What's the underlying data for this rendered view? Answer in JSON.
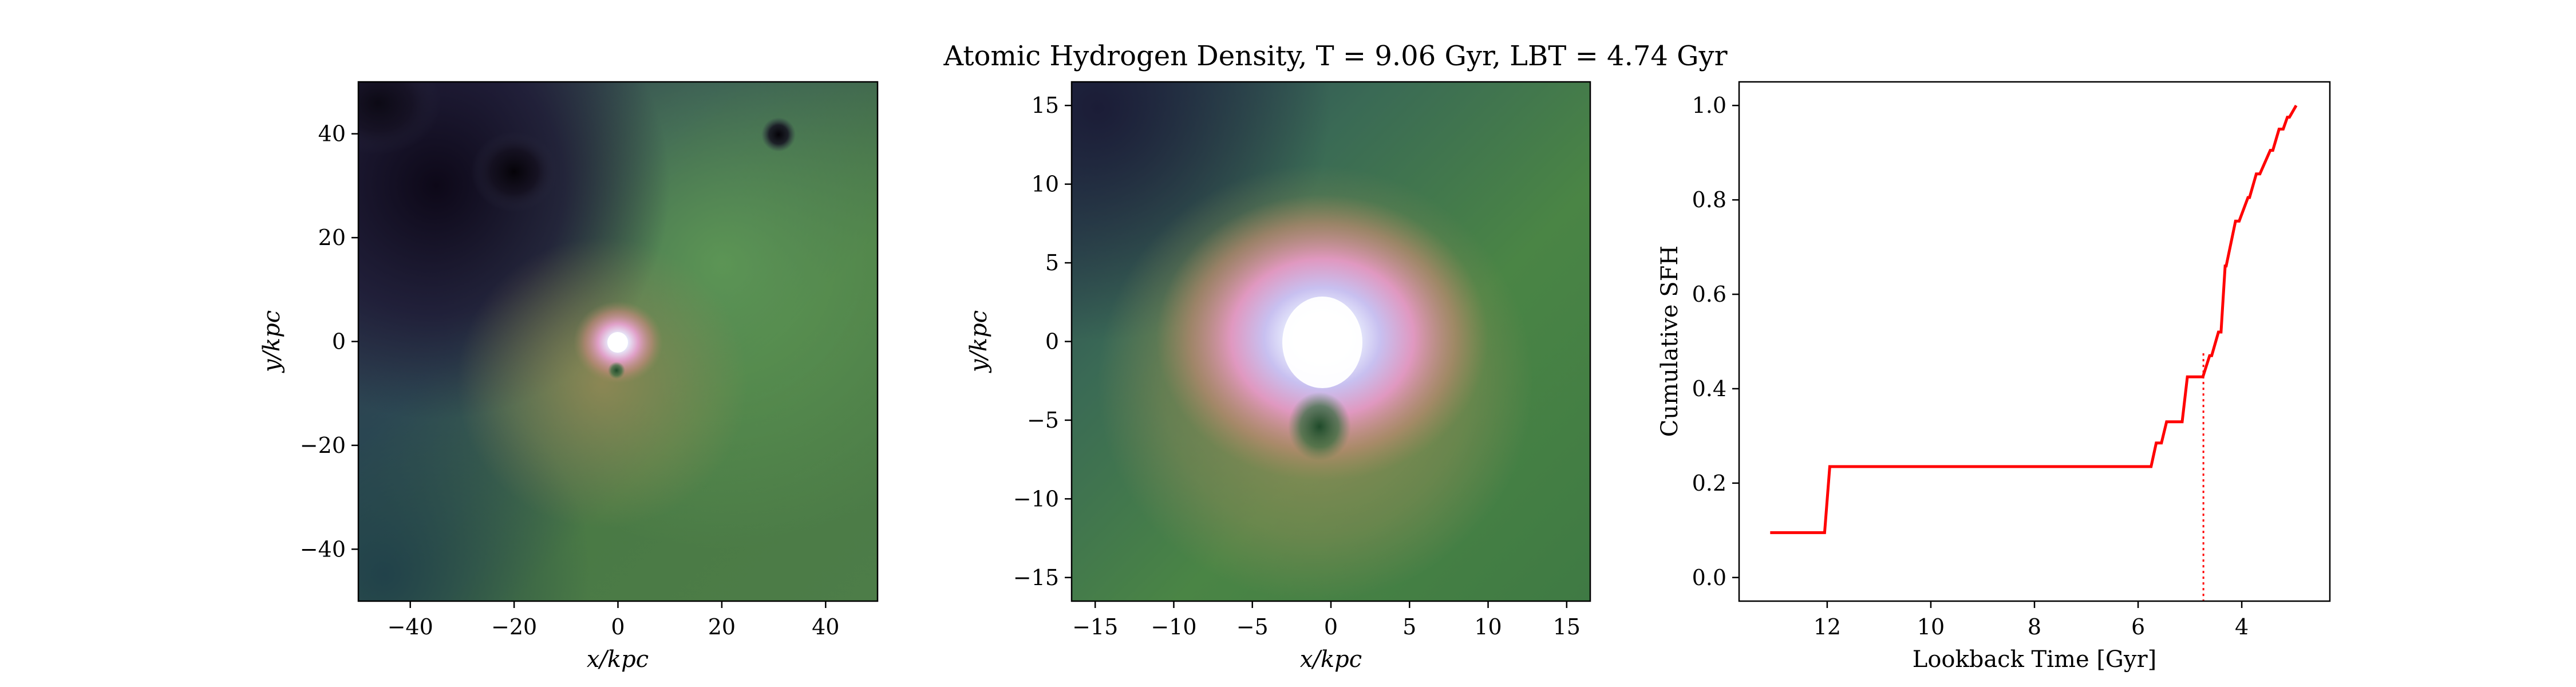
{
  "figure": {
    "title": "Atomic Hydrogen Density, T = 9.06 Gyr, LBT = 4.74 Gyr"
  },
  "chart_data": [
    {
      "type": "heatmap",
      "xlabel": "x/kpc",
      "ylabel": "y/kpc",
      "xlim": [
        -50,
        50
      ],
      "ylim": [
        -50,
        50
      ],
      "x_ticks": [
        -40,
        -20,
        0,
        20,
        40
      ],
      "y_ticks": [
        -40,
        -20,
        0,
        20,
        40
      ],
      "colormap": "cubehelix",
      "features": [
        {
          "name": "bright core",
          "x": 0,
          "y": 0
        },
        {
          "name": "dark spot",
          "x": 31,
          "y": 40
        },
        {
          "name": "dark void",
          "x": -20,
          "y": 33
        },
        {
          "name": "dark spot",
          "x": 0,
          "y": -5
        }
      ]
    },
    {
      "type": "heatmap",
      "xlabel": "x/kpc",
      "ylabel": "y/kpc",
      "xlim": [
        -16.5,
        16.5
      ],
      "ylim": [
        -16.5,
        16.5
      ],
      "x_ticks": [
        -15,
        -10,
        -5,
        0,
        5,
        10,
        15
      ],
      "y_ticks": [
        -15,
        -10,
        -5,
        0,
        5,
        10,
        15
      ],
      "colormap": "cubehelix",
      "features": [
        {
          "name": "bright core",
          "x": 0,
          "y": 0
        },
        {
          "name": "dark spot",
          "x": 0,
          "y": -5
        }
      ]
    },
    {
      "type": "line",
      "xlabel": "Lookback Time [Gyr]",
      "ylabel": "Cumulative SFH",
      "xlim": [
        13.7,
        2.3
      ],
      "ylim": [
        -0.05,
        1.05
      ],
      "x_ticks": [
        12,
        10,
        8,
        6,
        4
      ],
      "y_ticks": [
        0.0,
        0.2,
        0.4,
        0.6,
        0.8,
        1.0
      ],
      "series": [
        {
          "color": "#ff0000",
          "style": "step",
          "x": [
            13.1,
            12.05,
            11.95,
            5.75,
            5.65,
            5.55,
            5.45,
            5.15,
            5.05,
            4.75,
            4.62,
            4.58,
            4.45,
            4.4,
            4.32,
            4.3,
            4.12,
            4.05,
            3.88,
            3.85,
            3.72,
            3.65,
            3.45,
            3.4,
            3.28,
            3.2,
            3.12,
            3.08,
            2.95
          ],
          "y": [
            0.095,
            0.095,
            0.235,
            0.235,
            0.285,
            0.285,
            0.33,
            0.33,
            0.425,
            0.425,
            0.47,
            0.47,
            0.52,
            0.52,
            0.66,
            0.66,
            0.755,
            0.755,
            0.805,
            0.805,
            0.855,
            0.855,
            0.905,
            0.905,
            0.95,
            0.95,
            0.975,
            0.975,
            1.0
          ]
        }
      ],
      "vline": {
        "x": 4.74,
        "color": "#ff0000",
        "style": "dotted"
      }
    }
  ]
}
